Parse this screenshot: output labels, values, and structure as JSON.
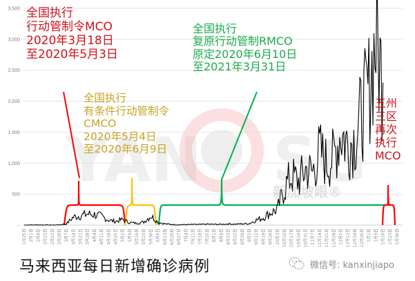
{
  "chart_data": {
    "type": "line",
    "title": "马来西亚每日新增确诊病例",
    "xlabel": "",
    "ylabel": "",
    "ylim": [
      0,
      3500
    ],
    "yticks": [
      "-",
      "500",
      "1,000",
      "1,500",
      "2,000",
      "2,500",
      "3,000",
      "3,500"
    ],
    "grid": true,
    "legend": "none",
    "x_tick_labels": [
      "1月25日",
      "2月1日",
      "2月8日",
      "2月15日",
      "2月22日",
      "2月29日",
      "3月7日",
      "3月14日",
      "3月21日",
      "3月28日",
      "4月4日",
      "4月11日",
      "4月18日",
      "4月25日",
      "5月2日",
      "5月9日",
      "5月16日",
      "5月23日",
      "5月30日",
      "6月6日",
      "6月13日",
      "6月20日",
      "6月27日",
      "7月4日",
      "7月11日",
      "7月18日",
      "7月25日",
      "8月1日",
      "8月8日",
      "8月15日",
      "8月22日",
      "8月29日",
      "9月5日",
      "9月12日",
      "9月19日",
      "9月26日",
      "10月3日",
      "10月10日",
      "10月17日",
      "10月24日",
      "10月31日",
      "11月7日",
      "11月14日",
      "11月21日",
      "11月28日",
      "12月5日",
      "12月12日",
      "12月19日",
      "12月26日",
      "1月2日",
      "1月9日",
      "1月16日",
      "1月23日",
      "1月30日"
    ],
    "series": [
      {
        "name": "每日新增确诊病例",
        "color": "#000000",
        "weekly_values": [
          0,
          2,
          3,
          1,
          0,
          4,
          20,
          130,
          150,
          180,
          170,
          140,
          80,
          60,
          90,
          40,
          30,
          50,
          150,
          50,
          20,
          10,
          5,
          8,
          10,
          10,
          15,
          12,
          12,
          20,
          15,
          20,
          25,
          80,
          120,
          200,
          250,
          600,
          800,
          710,
          900,
          850,
          1200,
          1000,
          1100,
          1500,
          1300,
          1400,
          1800,
          2200,
          3000,
          2300
        ]
      }
    ],
    "annotations": [
      {
        "label": "MCO",
        "color": "#ff0000",
        "start": "3月18日",
        "end": "5月3日"
      },
      {
        "label": "CMCO",
        "color": "#ffc000",
        "start": "5月4日",
        "end": "6月9日"
      },
      {
        "label": "RMCO",
        "color": "#00b050",
        "start": "6月10日",
        "end": "1月12日"
      },
      {
        "label": "MCO (五州三区)",
        "color": "#ff0000",
        "start": "1月13日",
        "end": "1月30日"
      }
    ]
  },
  "annotations": {
    "mco": {
      "lines": [
        "全国执行",
        "行动管制令MCO",
        "2020年3月18日",
        "至2020年5月3日"
      ],
      "color": "#d0121b"
    },
    "cmco": {
      "lines": [
        "全国执行",
        "有条件行动管制令",
        "CMCO",
        "2020年5月4日",
        "至2020年6月9日"
      ],
      "color": "#c9a227"
    },
    "rmco": {
      "lines": [
        "全国执行",
        "复原行动管制RMCO",
        "原定2020年6月10日",
        "至2021年3月31日"
      ],
      "color": "#1aab4b"
    },
    "mco2": {
      "lines": [
        "五州",
        "三区",
        "再次",
        "执行",
        "MCO"
      ],
      "color": "#d0121b"
    }
  },
  "title": "马来西亚每日新增确诊病例",
  "watermark": {
    "logo_text": "YANQSG",
    "cn_text": "新加坡眼®"
  },
  "wechat": {
    "label": "微信号: kanxinjiapo"
  }
}
